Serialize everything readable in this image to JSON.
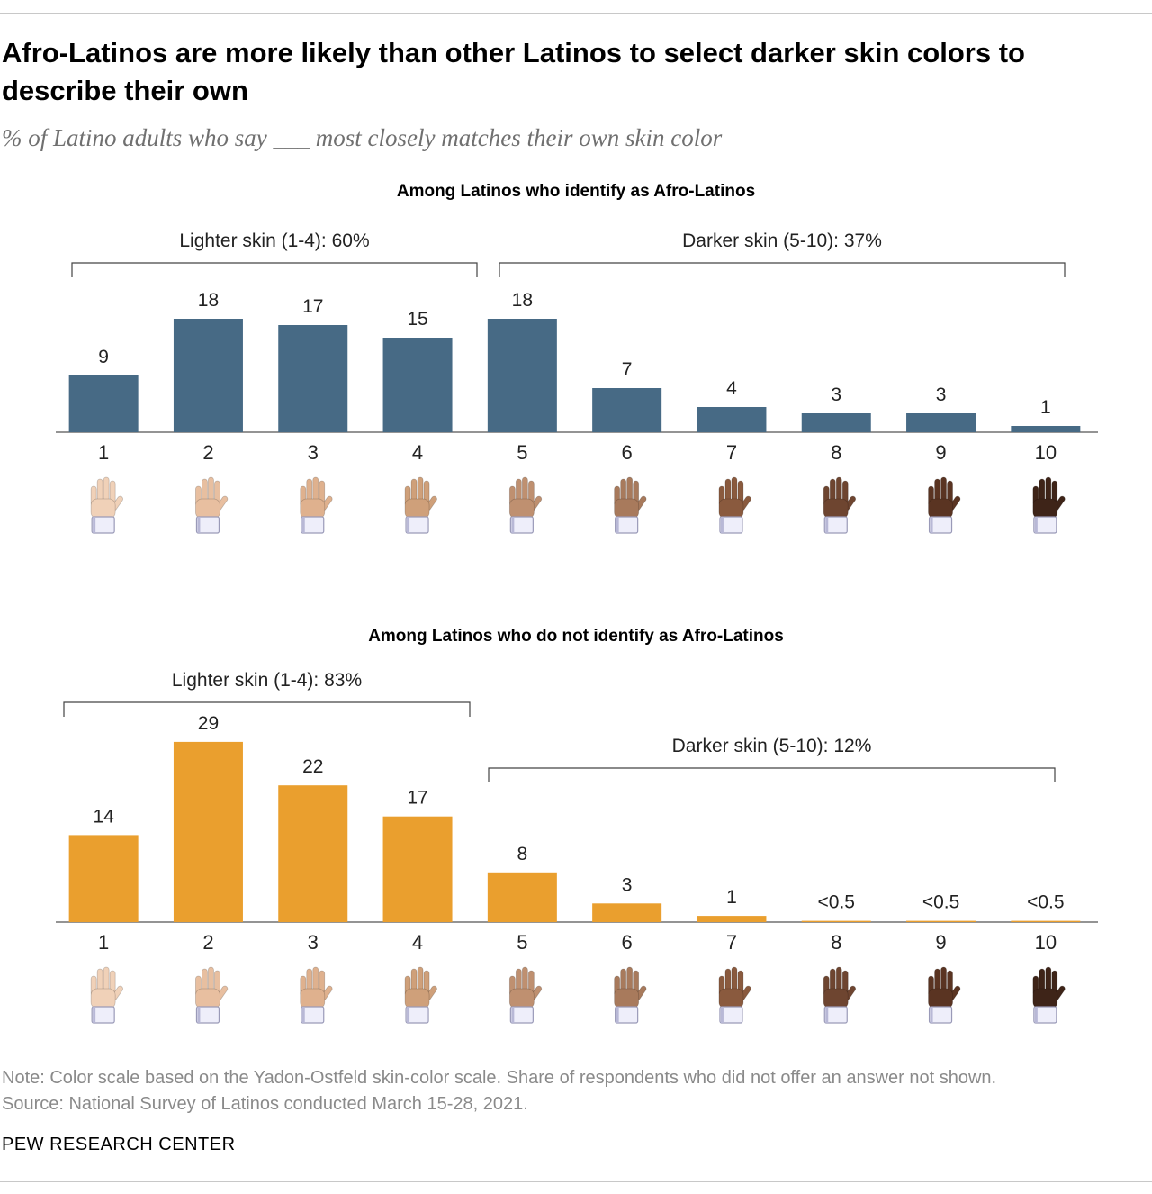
{
  "title": "Afro-Latinos are more likely than other Latinos to select darker skin colors to describe their own",
  "subtitle": "% of Latino adults who say ___ most closely matches their own skin color",
  "colors": {
    "afro": "#476a85",
    "non_afro": "#ea9f2e",
    "axis": "#555555",
    "bracket": "#444444"
  },
  "scale": [
    "1",
    "2",
    "3",
    "4",
    "5",
    "6",
    "7",
    "8",
    "9",
    "10"
  ],
  "hand_icon": "hand-icon",
  "skin_tones": [
    "#f0d1b8",
    "#e8bfa0",
    "#dfb18e",
    "#cfa07a",
    "#bf9070",
    "#a87a5c",
    "#8a5a3e",
    "#6e4530",
    "#5a3422",
    "#3e2418"
  ],
  "chart_data": [
    {
      "type": "bar",
      "title": "Among Latinos who identify as Afro-Latinos",
      "categories": [
        "1",
        "2",
        "3",
        "4",
        "5",
        "6",
        "7",
        "8",
        "9",
        "10"
      ],
      "values": [
        9,
        18,
        17,
        15,
        18,
        7,
        4,
        3,
        3,
        1
      ],
      "labels": [
        "9",
        "18",
        "17",
        "15",
        "18",
        "7",
        "4",
        "3",
        "3",
        "1"
      ],
      "brackets": [
        {
          "label": "Lighter skin (1-4): 60%",
          "from": 1,
          "to": 4
        },
        {
          "label": "Darker skin (5-10): 37%",
          "from": 5,
          "to": 10
        }
      ],
      "color": "#476a85",
      "ylim": [
        0,
        29
      ]
    },
    {
      "type": "bar",
      "title": "Among Latinos who do not identify as Afro-Latinos",
      "categories": [
        "1",
        "2",
        "3",
        "4",
        "5",
        "6",
        "7",
        "8",
        "9",
        "10"
      ],
      "values": [
        14,
        29,
        22,
        17,
        8,
        3,
        1,
        0.2,
        0.2,
        0.2
      ],
      "labels": [
        "14",
        "29",
        "22",
        "17",
        "8",
        "3",
        "1",
        "<0.5",
        "<0.5",
        "<0.5"
      ],
      "brackets": [
        {
          "label": "Lighter skin (1-4): 83%",
          "from": 1,
          "to": 4
        },
        {
          "label": "Darker skin (5-10): 12%",
          "from": 5,
          "to": 10
        }
      ],
      "color": "#ea9f2e",
      "ylim": [
        0,
        29
      ]
    }
  ],
  "note": "Note: Color scale based on the Yadon-Ostfeld skin-color scale. Share of respondents who did not offer an answer not shown.",
  "source": "Source: National Survey of Latinos conducted March 15-28, 2021.",
  "brand": "PEW RESEARCH CENTER"
}
